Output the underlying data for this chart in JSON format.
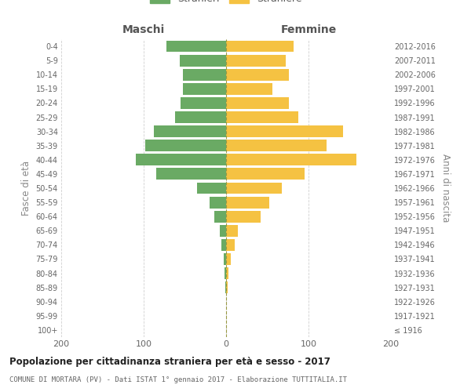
{
  "age_groups": [
    "100+",
    "95-99",
    "90-94",
    "85-89",
    "80-84",
    "75-79",
    "70-74",
    "65-69",
    "60-64",
    "55-59",
    "50-54",
    "45-49",
    "40-44",
    "35-39",
    "30-34",
    "25-29",
    "20-24",
    "15-19",
    "10-14",
    "5-9",
    "0-4"
  ],
  "birth_years": [
    "≤ 1916",
    "1917-1921",
    "1922-1926",
    "1927-1931",
    "1932-1936",
    "1937-1941",
    "1942-1946",
    "1947-1951",
    "1952-1956",
    "1957-1961",
    "1962-1966",
    "1967-1971",
    "1972-1976",
    "1977-1981",
    "1982-1986",
    "1987-1991",
    "1992-1996",
    "1997-2001",
    "2002-2006",
    "2007-2011",
    "2012-2016"
  ],
  "males": [
    0,
    0,
    0,
    1,
    2,
    3,
    6,
    8,
    14,
    20,
    35,
    85,
    110,
    98,
    88,
    62,
    55,
    52,
    52,
    56,
    72
  ],
  "females": [
    0,
    0,
    0,
    2,
    3,
    6,
    10,
    14,
    42,
    52,
    68,
    95,
    158,
    122,
    142,
    88,
    76,
    56,
    76,
    72,
    82
  ],
  "male_color": "#6aaa64",
  "female_color": "#f5c242",
  "title": "Popolazione per cittadinanza straniera per età e sesso - 2017",
  "subtitle": "COMUNE DI MORTARA (PV) - Dati ISTAT 1° gennaio 2017 - Elaborazione TUTTITALIA.IT",
  "ylabel_left": "Fasce di età",
  "ylabel_right": "Anni di nascita",
  "xlabel_left": "Maschi",
  "xlabel_right": "Femmine",
  "xlim": 200,
  "background_color": "#ffffff",
  "grid_color": "#d0d0d0"
}
